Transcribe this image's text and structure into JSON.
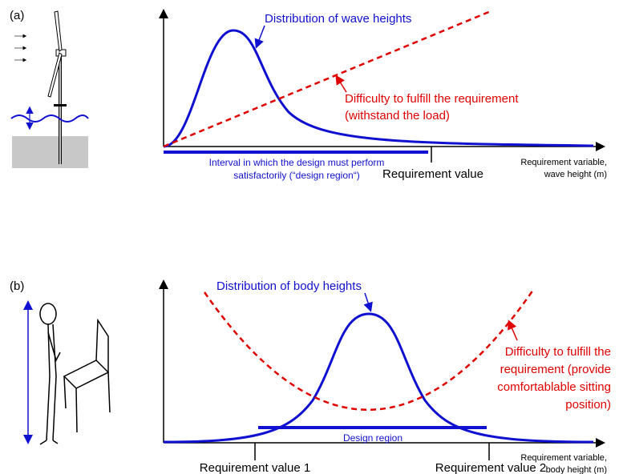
{
  "panels": [
    {
      "label": "(a)",
      "distribution_label": "Distribution of wave heights",
      "difficulty_label": [
        "Difficulty to fulfill the requirement",
        "(withstand the load)"
      ],
      "region_label": [
        "Interval in which the design must perform",
        "satisfactorily (“design region“)"
      ],
      "requirement_labels": [
        "Requirement value"
      ],
      "axis_label": [
        "Requirement variable,",
        "wave height (m)"
      ]
    },
    {
      "label": "(b)",
      "distribution_label": "Distribution of body heights",
      "difficulty_label": [
        "Difficulty to fulfill the",
        "requirement (provide",
        "comfortablable sitting",
        "position)"
      ],
      "region_label": [
        "Design region"
      ],
      "requirement_labels": [
        "Requirement value 1",
        "Requirement value 2"
      ],
      "axis_label": [
        "Requirement variable,",
        "body height (m)"
      ]
    }
  ]
}
